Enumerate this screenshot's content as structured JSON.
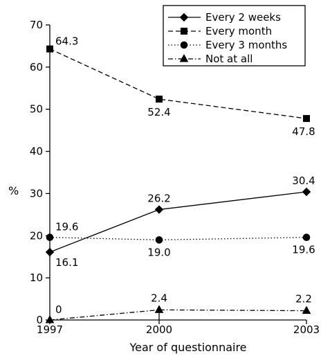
{
  "chart_data": {
    "type": "line",
    "x": [
      "1997",
      "2000",
      "2003"
    ],
    "ylabel": "%",
    "xlabel": "Year of questionnaire",
    "ylim": [
      0,
      70
    ],
    "yticks": [
      "0",
      "10",
      "20",
      "30",
      "40",
      "50",
      "60",
      "70"
    ],
    "grid": false,
    "legend_position": "top-right",
    "series": [
      {
        "name": "Every 2 weeks",
        "marker": "diamond",
        "dash": "solid",
        "values": [
          16.1,
          26.2,
          30.4
        ],
        "labels": [
          "16.1",
          "26.2",
          "30.4"
        ]
      },
      {
        "name": "Every month",
        "marker": "square",
        "dash": "dashed",
        "values": [
          64.3,
          52.4,
          47.8
        ],
        "labels": [
          "64.3",
          "52.4",
          "47.8"
        ]
      },
      {
        "name": "Every 3 months",
        "marker": "circle",
        "dash": "dotted",
        "values": [
          19.6,
          19.0,
          19.6
        ],
        "labels": [
          "19.6",
          "19.0",
          "19.6"
        ]
      },
      {
        "name": "Not at all",
        "marker": "triangle",
        "dash": "dashdot",
        "values": [
          0,
          2.4,
          2.2
        ],
        "labels": [
          "0",
          "2.4",
          "2.2"
        ]
      }
    ]
  }
}
